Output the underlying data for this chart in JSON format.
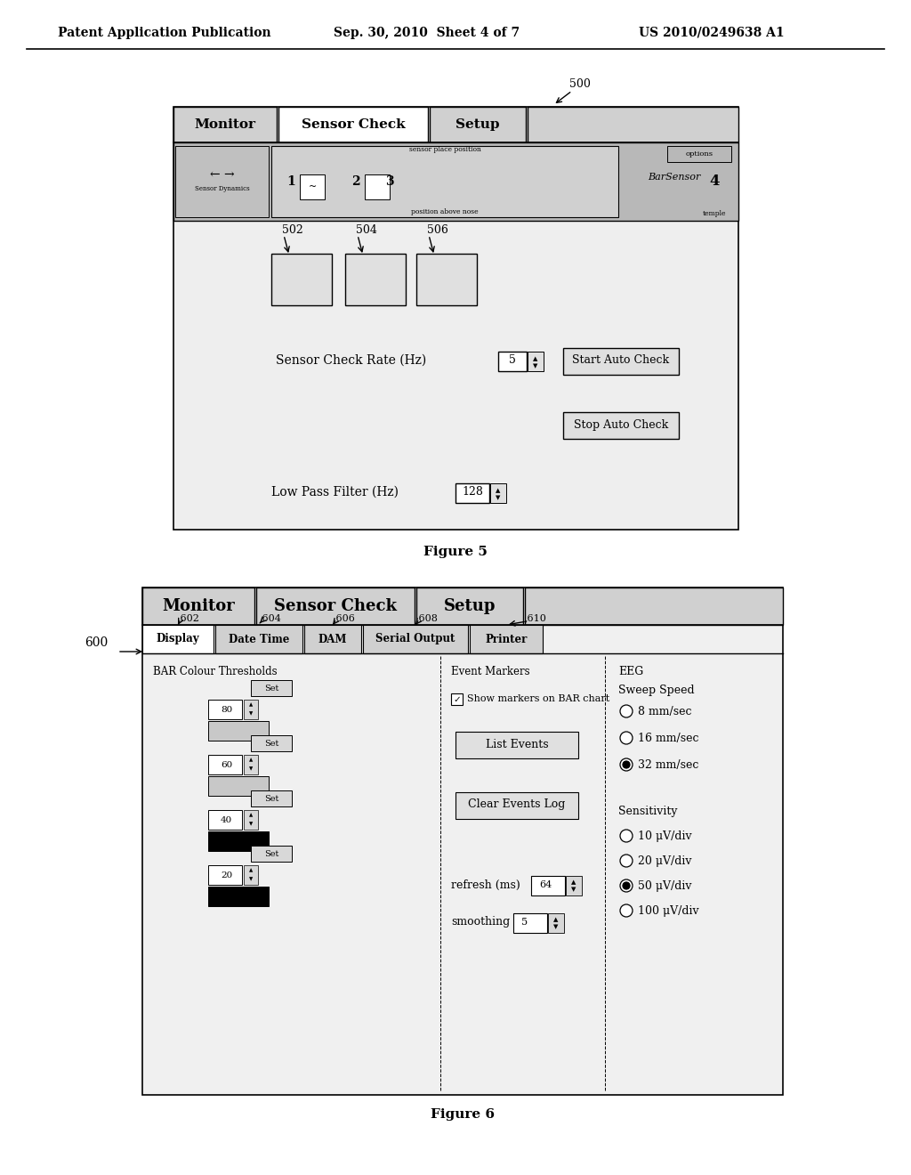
{
  "header_left": "Patent Application Publication",
  "header_mid": "Sep. 30, 2010  Sheet 4 of 7",
  "header_right": "US 2010/0249638 A1",
  "fig5_label": "500",
  "fig5_tabs": [
    "Monitor",
    "Sensor Check",
    "Setup"
  ],
  "fig5_caption": "Figure 5",
  "fig5_sub_labels": [
    "502",
    "504",
    "506"
  ],
  "fig5_sensor_check_rate": "Sensor Check Rate (Hz)",
  "fig5_scr_value": "5",
  "fig5_start_auto": "Start Auto Check",
  "fig5_stop_auto": "Stop Auto Check",
  "fig5_low_pass": "Low Pass Filter (Hz)",
  "fig5_lp_value": "128",
  "fig6_label": "600",
  "fig6_ref": "Figure 6",
  "fig6_tabs_top": [
    "Monitor",
    "Sensor Check",
    "Setup"
  ],
  "fig6_tabs_sub": [
    "Display",
    "Date Time",
    "DAM",
    "Serial Output",
    "Printer"
  ],
  "fig6_sub_nums": [
    "602",
    "604",
    "606",
    "608",
    "610"
  ],
  "fig6_bar_title": "BAR Colour Thresholds",
  "fig6_event_title": "Event Markers",
  "fig6_eeg_title": "EEG",
  "fig6_show_markers": "Show markers on BAR chart",
  "fig6_list_events": "List Events",
  "fig6_clear_log": "Clear Events Log",
  "fig6_refresh": "refresh (ms)",
  "fig6_refresh_val": "64",
  "fig6_smoothing": "smoothing",
  "fig6_smooth_val": "5",
  "fig6_sweep_speed": "Sweep Speed",
  "fig6_sweep_opts": [
    "8 mm/sec",
    "16 mm/sec",
    "32 mm/sec"
  ],
  "fig6_sweep_selected": 2,
  "fig6_sensitivity": "Sensitivity",
  "fig6_sens_opts": [
    "10 μV/div",
    "20 μV/div",
    "50 μV/div",
    "100 μV/div"
  ],
  "fig6_sens_selected": 2,
  "fig6_bar_values": [
    "80",
    "60",
    "40",
    "20"
  ],
  "fig6_bar_colors": [
    "#c8c8c8",
    "#c8c8c8",
    "#000000",
    "#000000"
  ],
  "fig6_bar_top_colors": [
    "#ffffff",
    "#c0c0c0",
    "#c0c0c0",
    "#c0c0c0"
  ],
  "bg_color": "#ffffff"
}
